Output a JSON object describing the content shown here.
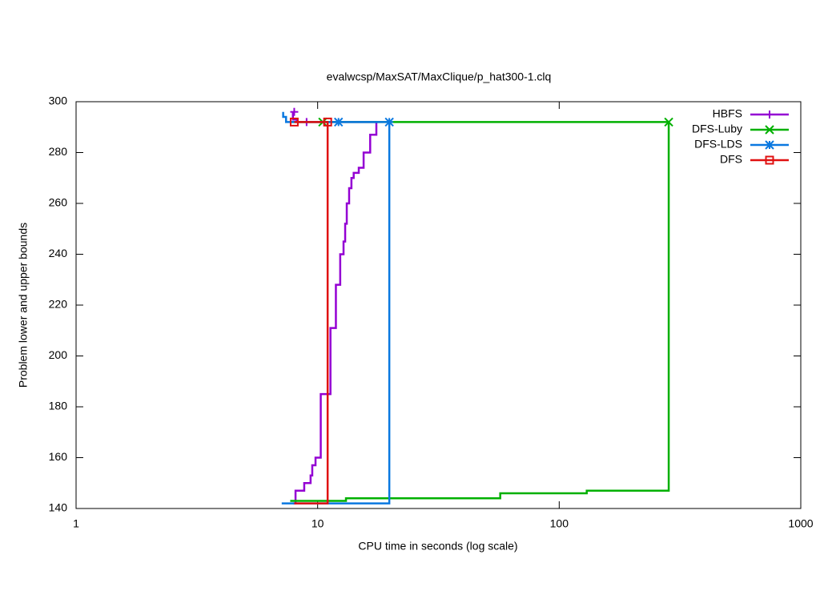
{
  "chart_data": {
    "type": "line",
    "title": "evalwcsp/MaxSAT/MaxClique/p_hat300-1.clq",
    "xlabel": "CPU time in seconds (log scale)",
    "ylabel": "Problem lower and upper bounds",
    "xscale": "log",
    "xlim": [
      1,
      1000
    ],
    "xticks": [
      1,
      10,
      100,
      1000
    ],
    "ylim": [
      140,
      300
    ],
    "yticks": [
      140,
      160,
      180,
      200,
      220,
      240,
      260,
      280,
      300
    ],
    "legend": "top right",
    "series": [
      {
        "name": "HBFS",
        "color": "#9400d3",
        "marker": "plus",
        "x": [
          7.9,
          8.1,
          8.1,
          8.8,
          8.8,
          9.35,
          9.35,
          9.5,
          9.5,
          9.8,
          9.8,
          10.3,
          10.3,
          11.3,
          11.3,
          11.9,
          11.9,
          12.4,
          12.4,
          12.8,
          12.8,
          13.0,
          13.0,
          13.2,
          13.2,
          13.5,
          13.5,
          13.8,
          13.8,
          14.1,
          14.1,
          14.8,
          14.8,
          15.5,
          15.5,
          16.5,
          16.5,
          17.5,
          17.5,
          8.2,
          8.2,
          7.9,
          7.9
        ],
        "values": [
          142,
          142,
          147,
          147,
          150,
          150,
          153,
          153,
          157,
          157,
          160,
          160,
          185,
          185,
          211,
          211,
          228,
          228,
          240,
          240,
          245,
          245,
          252,
          252,
          260,
          260,
          266,
          266,
          270,
          270,
          272,
          272,
          274,
          274,
          280,
          280,
          287,
          287,
          292,
          292,
          293,
          293,
          296
        ],
        "marker_x": [
          8.0,
          9.0
        ],
        "marker_values": [
          296,
          292
        ]
      },
      {
        "name": "DFS-Luby",
        "color": "#00b000",
        "marker": "cross",
        "x": [
          7.7,
          284,
          284,
          130,
          130,
          57,
          57,
          13.1,
          13.1,
          7.7
        ],
        "values": [
          292,
          292,
          147,
          147,
          146,
          146,
          144,
          144,
          143,
          143
        ],
        "marker_x": [
          10.5,
          284
        ],
        "marker_values": [
          292,
          292
        ]
      },
      {
        "name": "DFS-LDS",
        "color": "#0a78e0",
        "marker": "star",
        "x": [
          7.2,
          7.2,
          7.4,
          7.4,
          19.8,
          19.8,
          7.1
        ],
        "values": [
          296,
          294,
          294,
          292,
          292,
          142,
          142
        ],
        "marker_x": [
          12.2,
          19.8
        ],
        "marker_values": [
          292,
          292
        ]
      },
      {
        "name": "DFS",
        "color": "#e01010",
        "marker": "square",
        "x": [
          8.0,
          11.0,
          11.0,
          8.0
        ],
        "values": [
          292,
          292,
          142,
          142
        ],
        "marker_x": [
          8.0,
          11.0
        ],
        "marker_values": [
          292,
          292
        ]
      }
    ]
  }
}
